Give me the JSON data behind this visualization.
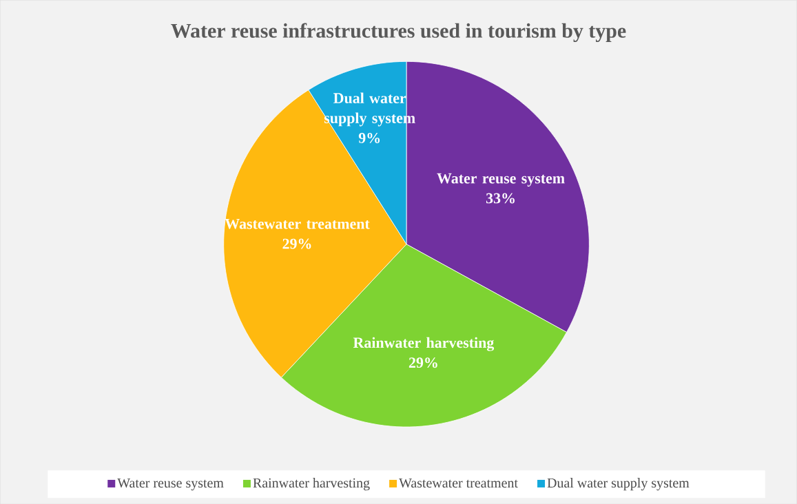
{
  "chart_data": {
    "type": "pie",
    "title": "Water reuse infrastructures used in tourism by type",
    "categories": [
      "Water reuse system",
      "Rainwater harvesting",
      "Wastewater treatment",
      "Dual water supply system"
    ],
    "values": [
      33,
      29,
      29,
      9
    ],
    "colors": [
      "#7030a0",
      "#7ed332",
      "#ffb90f",
      "#14a9dc"
    ],
    "value_labels": [
      "33%",
      "29%",
      "29%",
      "9%"
    ],
    "legend": "bottom"
  }
}
